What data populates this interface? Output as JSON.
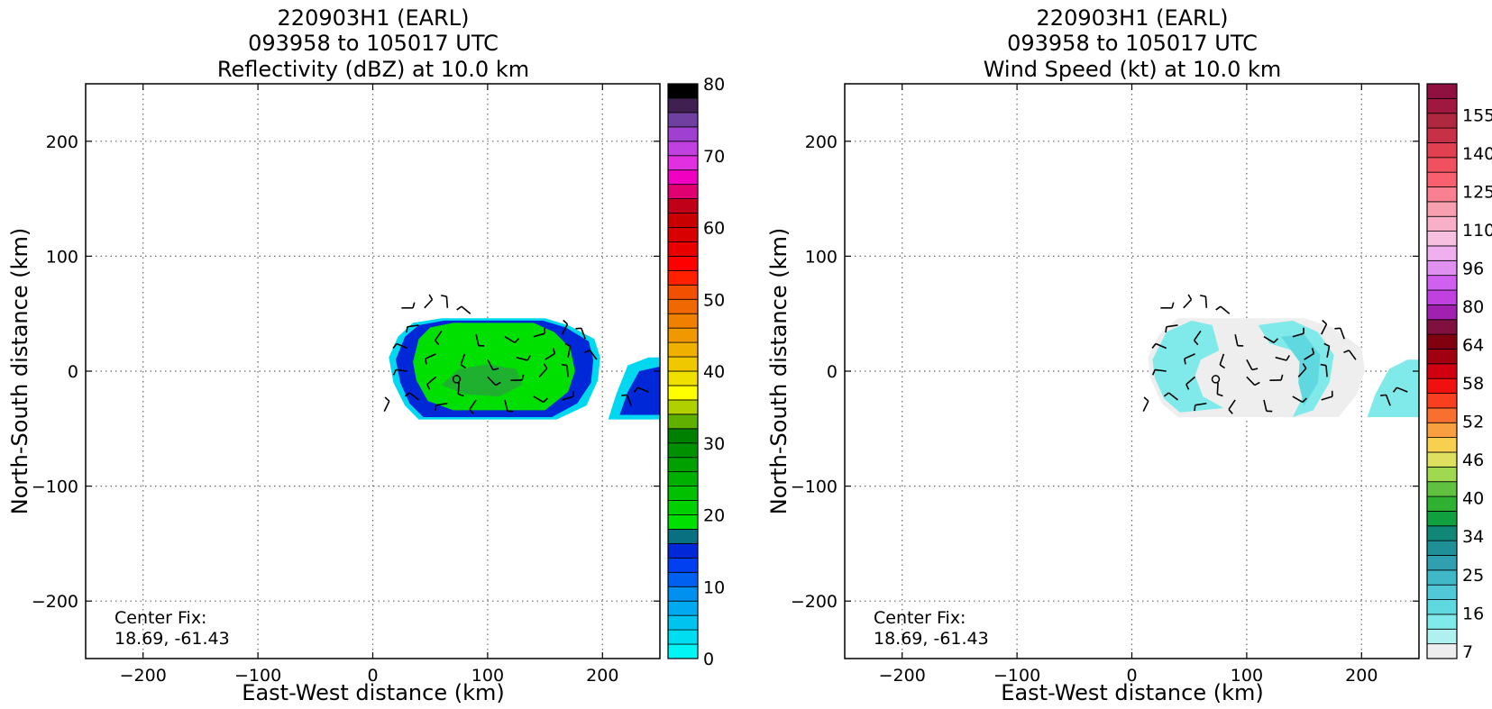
{
  "chart_data": [
    {
      "type": "heatmap",
      "title_lines": [
        "220903H1 (EARL)",
        "093958 to 105017 UTC",
        "Reflectivity (dBZ) at 10.0 km"
      ],
      "xlabel": "East-West distance (km)",
      "ylabel": "North-South distance (km)",
      "xlim": [
        -250,
        250
      ],
      "ylim": [
        -250,
        250
      ],
      "xticks": [
        -200,
        -100,
        0,
        100,
        200
      ],
      "yticks": [
        -200,
        -100,
        0,
        100,
        200
      ],
      "tick_labels_x": [
        "−200",
        "−100",
        "0",
        "100",
        "200"
      ],
      "tick_labels_y": [
        "−200",
        "−100",
        "0",
        "100",
        "200"
      ],
      "grid": true,
      "annotation": [
        "Center Fix:",
        "18.69, -61.43"
      ],
      "center_marker": [
        73,
        -7
      ],
      "colorbar": {
        "ticks": [
          "0",
          "10",
          "20",
          "30",
          "40",
          "50",
          "60",
          "70",
          "80"
        ],
        "colors": [
          "#00f5f5",
          "#00dcf0",
          "#00c4f0",
          "#00aaf0",
          "#0090f0",
          "#0060f0",
          "#0040f0",
          "#0028d8",
          "#087080",
          "#00e000",
          "#00d000",
          "#00c000",
          "#00b000",
          "#00a000",
          "#009000",
          "#008000",
          "#60b000",
          "#b0d000",
          "#ffff00",
          "#f0e000",
          "#f0c800",
          "#f0b000",
          "#f09800",
          "#f08000",
          "#f06800",
          "#f05000",
          "#ff2000",
          "#ff0000",
          "#e80000",
          "#d80000",
          "#c80000",
          "#c00018",
          "#e00070",
          "#f000c0",
          "#e030e0",
          "#c040e0",
          "#a040d0",
          "#7040a0",
          "#402050",
          "#000000"
        ]
      },
      "field_levels": {
        "blue_ring": "#0028d8",
        "core": "#00e000",
        "core_dark": "#20b030",
        "cyan_edge": "#00d8f0"
      }
    },
    {
      "type": "heatmap",
      "title_lines": [
        "220903H1 (EARL)",
        "093958 to 105017 UTC",
        "Wind Speed (kt) at 10.0 km"
      ],
      "xlabel": "East-West distance (km)",
      "ylabel": "North-South distance (km)",
      "xlim": [
        -250,
        250
      ],
      "ylim": [
        -250,
        250
      ],
      "xticks": [
        -200,
        -100,
        0,
        100,
        200
      ],
      "yticks": [
        -200,
        -100,
        0,
        100,
        200
      ],
      "tick_labels_x": [
        "−200",
        "−100",
        "0",
        "100",
        "200"
      ],
      "tick_labels_y": [
        "−200",
        "−100",
        "0",
        "100",
        "200"
      ],
      "grid": true,
      "annotation": [
        "Center Fix:",
        "18.69, -61.43"
      ],
      "center_marker": [
        73,
        -7
      ],
      "colorbar": {
        "ticks": [
          "7",
          "16",
          "25",
          "34",
          "40",
          "46",
          "52",
          "58",
          "64",
          "80",
          "96",
          "110",
          "125",
          "140",
          "155"
        ],
        "colors": [
          "#eeeeee",
          "#b0f0f0",
          "#80eaea",
          "#60d8e0",
          "#50c8d8",
          "#40b8c8",
          "#30a0b0",
          "#209098",
          "#108878",
          "#10a040",
          "#30b030",
          "#60c040",
          "#a0d850",
          "#e0e060",
          "#f8d050",
          "#f8a040",
          "#f87030",
          "#f84020",
          "#f01010",
          "#d00010",
          "#a00010",
          "#800010",
          "#801040",
          "#a020b0",
          "#c040e0",
          "#d060f0",
          "#e090f0",
          "#f0b0f0",
          "#f8c0e0",
          "#f8b0c8",
          "#f8a0b0",
          "#f88090",
          "#f86070",
          "#f05060",
          "#e04050",
          "#c83048",
          "#b02840",
          "#a01840",
          "#901040"
        ]
      },
      "field_levels": {
        "weak": "#eeeeee",
        "light": "#80eaea",
        "mid": "#60d8e0"
      }
    }
  ]
}
